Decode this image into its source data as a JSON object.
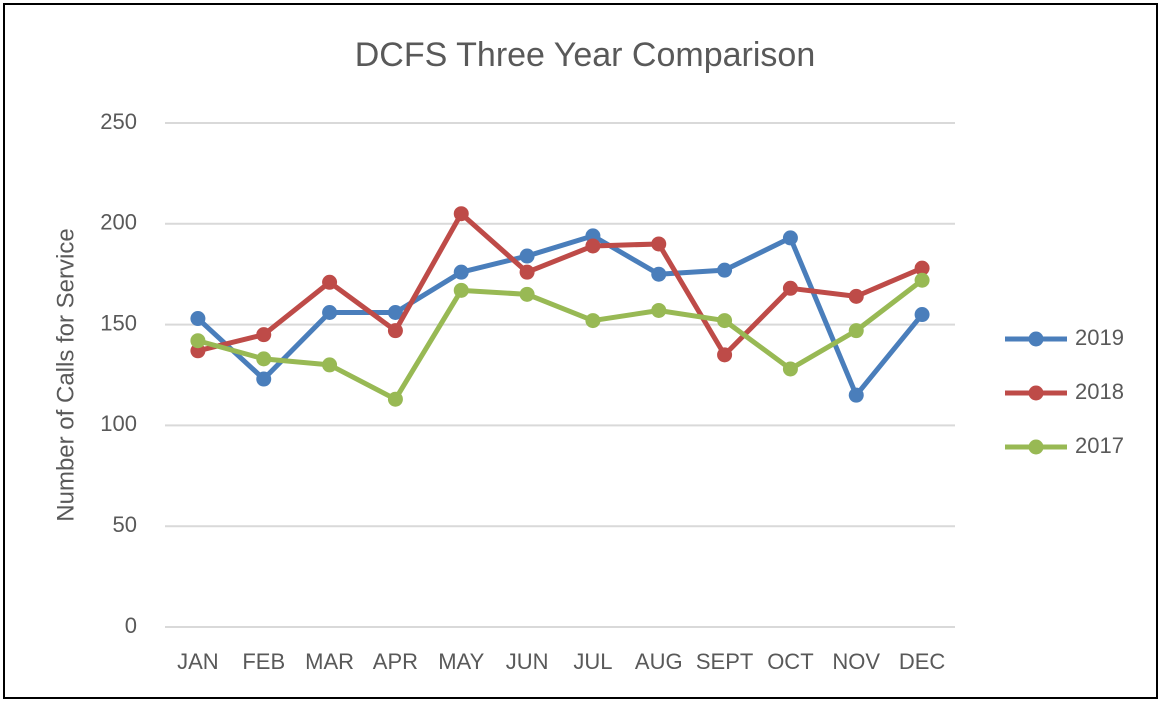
{
  "chart_data": {
    "type": "line",
    "title": "DCFS Three Year Comparison",
    "y_label": "Number of Calls for Service",
    "categories": [
      "JAN",
      "FEB",
      "MAR",
      "APR",
      "MAY",
      "JUN",
      "JUL",
      "AUG",
      "SEPT",
      "OCT",
      "NOV",
      "DEC"
    ],
    "series": [
      {
        "name": "2019",
        "color": "#4a7ebb",
        "values": [
          153,
          123,
          156,
          156,
          176,
          184,
          194,
          175,
          177,
          193,
          115,
          155
        ]
      },
      {
        "name": "2018",
        "color": "#be4b48",
        "values": [
          137,
          145,
          171,
          147,
          205,
          176,
          189,
          190,
          135,
          168,
          164,
          178
        ]
      },
      {
        "name": "2017",
        "color": "#98b954",
        "values": [
          142,
          133,
          130,
          113,
          167,
          165,
          152,
          157,
          152,
          128,
          147,
          172
        ]
      }
    ],
    "ylim": [
      0,
      250
    ],
    "yticks": [
      0,
      50,
      100,
      150,
      200,
      250
    ],
    "grid": true,
    "legend": "right"
  }
}
